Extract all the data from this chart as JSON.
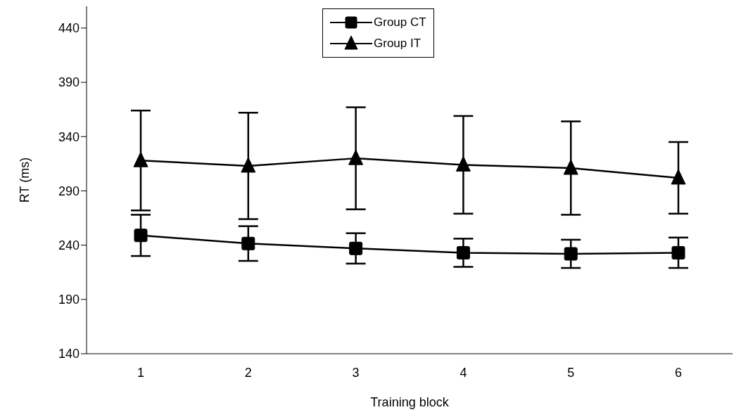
{
  "chart_data": {
    "type": "line",
    "xlabel": "Training block",
    "ylabel": "RT (ms)",
    "categories": [
      "1",
      "2",
      "3",
      "4",
      "5",
      "6"
    ],
    "series": [
      {
        "name": "Group CT",
        "color": "#000000",
        "marker": "square",
        "values": [
          249,
          241.5,
          237,
          233,
          232,
          233
        ],
        "errors": [
          19,
          16,
          14,
          13,
          13,
          14
        ]
      },
      {
        "name": "Group IT",
        "color": "#000000",
        "marker": "triangle",
        "values": [
          318,
          313,
          320,
          314,
          311,
          302
        ],
        "errors": [
          46,
          49,
          47,
          45,
          43,
          33
        ]
      }
    ],
    "ylim": [
      140,
      460
    ],
    "yticks": [
      140,
      190,
      240,
      290,
      340,
      390,
      440
    ],
    "legend": "top"
  }
}
